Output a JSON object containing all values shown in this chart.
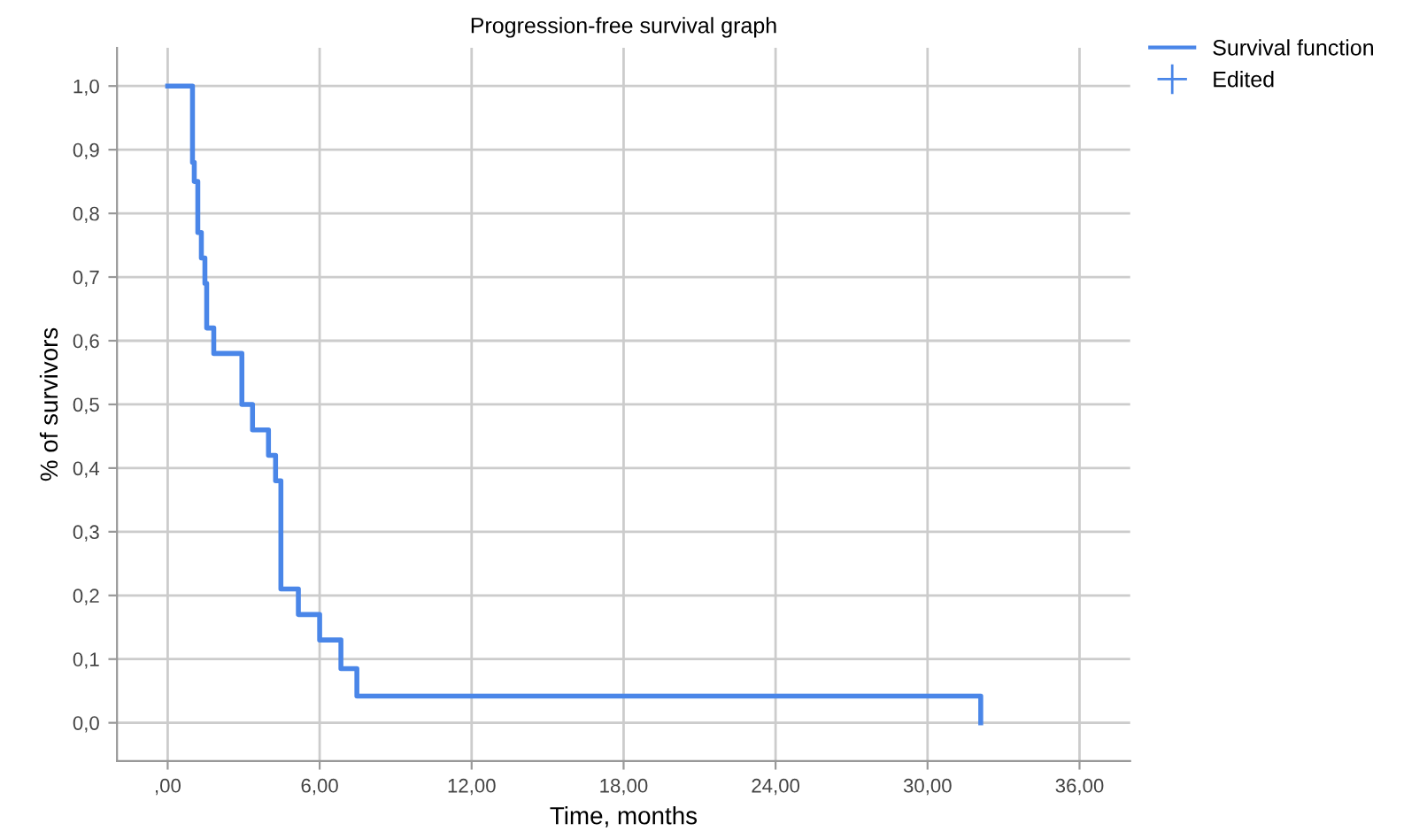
{
  "chart_data": {
    "type": "step",
    "title": "Progression-free survival graph",
    "xlabel": "Time, months",
    "ylabel": "% of survivors",
    "xlim": [
      -2,
      38
    ],
    "ylim": [
      -0.06,
      1.06
    ],
    "xticks": [
      {
        "value": 0,
        "label": ",00"
      },
      {
        "value": 6,
        "label": "6,00"
      },
      {
        "value": 12,
        "label": "12,00"
      },
      {
        "value": 18,
        "label": "18,00"
      },
      {
        "value": 24,
        "label": "24,00"
      },
      {
        "value": 30,
        "label": "30,00"
      },
      {
        "value": 36,
        "label": "36,00"
      }
    ],
    "yticks": [
      {
        "value": 0,
        "label": "0,0"
      },
      {
        "value": 0.1,
        "label": "0,1"
      },
      {
        "value": 0.2,
        "label": "0,2"
      },
      {
        "value": 0.3,
        "label": "0,3"
      },
      {
        "value": 0.4,
        "label": "0,4"
      },
      {
        "value": 0.5,
        "label": "0,5"
      },
      {
        "value": 0.6,
        "label": "0,6"
      },
      {
        "value": 0.7,
        "label": "0,7"
      },
      {
        "value": 0.8,
        "label": "0,8"
      },
      {
        "value": 0.9,
        "label": "0,9"
      },
      {
        "value": 1.0,
        "label": "1,0"
      }
    ],
    "grid": true,
    "legend": "top right",
    "line_style": "solid",
    "series": [
      {
        "name": "Survival function",
        "color": "#4a86e8",
        "x": [
          0,
          0.98,
          1.05,
          1.19,
          1.33,
          1.47,
          1.54,
          1.82,
          2.03,
          2.93,
          3.35,
          3.98,
          4.26,
          4.47,
          5.16,
          6.0,
          6.84,
          7.47,
          32.1
        ],
        "values": [
          1.0,
          0.88,
          0.85,
          0.77,
          0.73,
          0.69,
          0.62,
          0.58,
          0.58,
          0.5,
          0.46,
          0.42,
          0.38,
          0.21,
          0.17,
          0.13,
          0.085,
          0.042,
          0.0
        ]
      },
      {
        "name": "Edited",
        "type": "scatter",
        "marker": "cross",
        "color": "#4a86e8"
      }
    ]
  }
}
